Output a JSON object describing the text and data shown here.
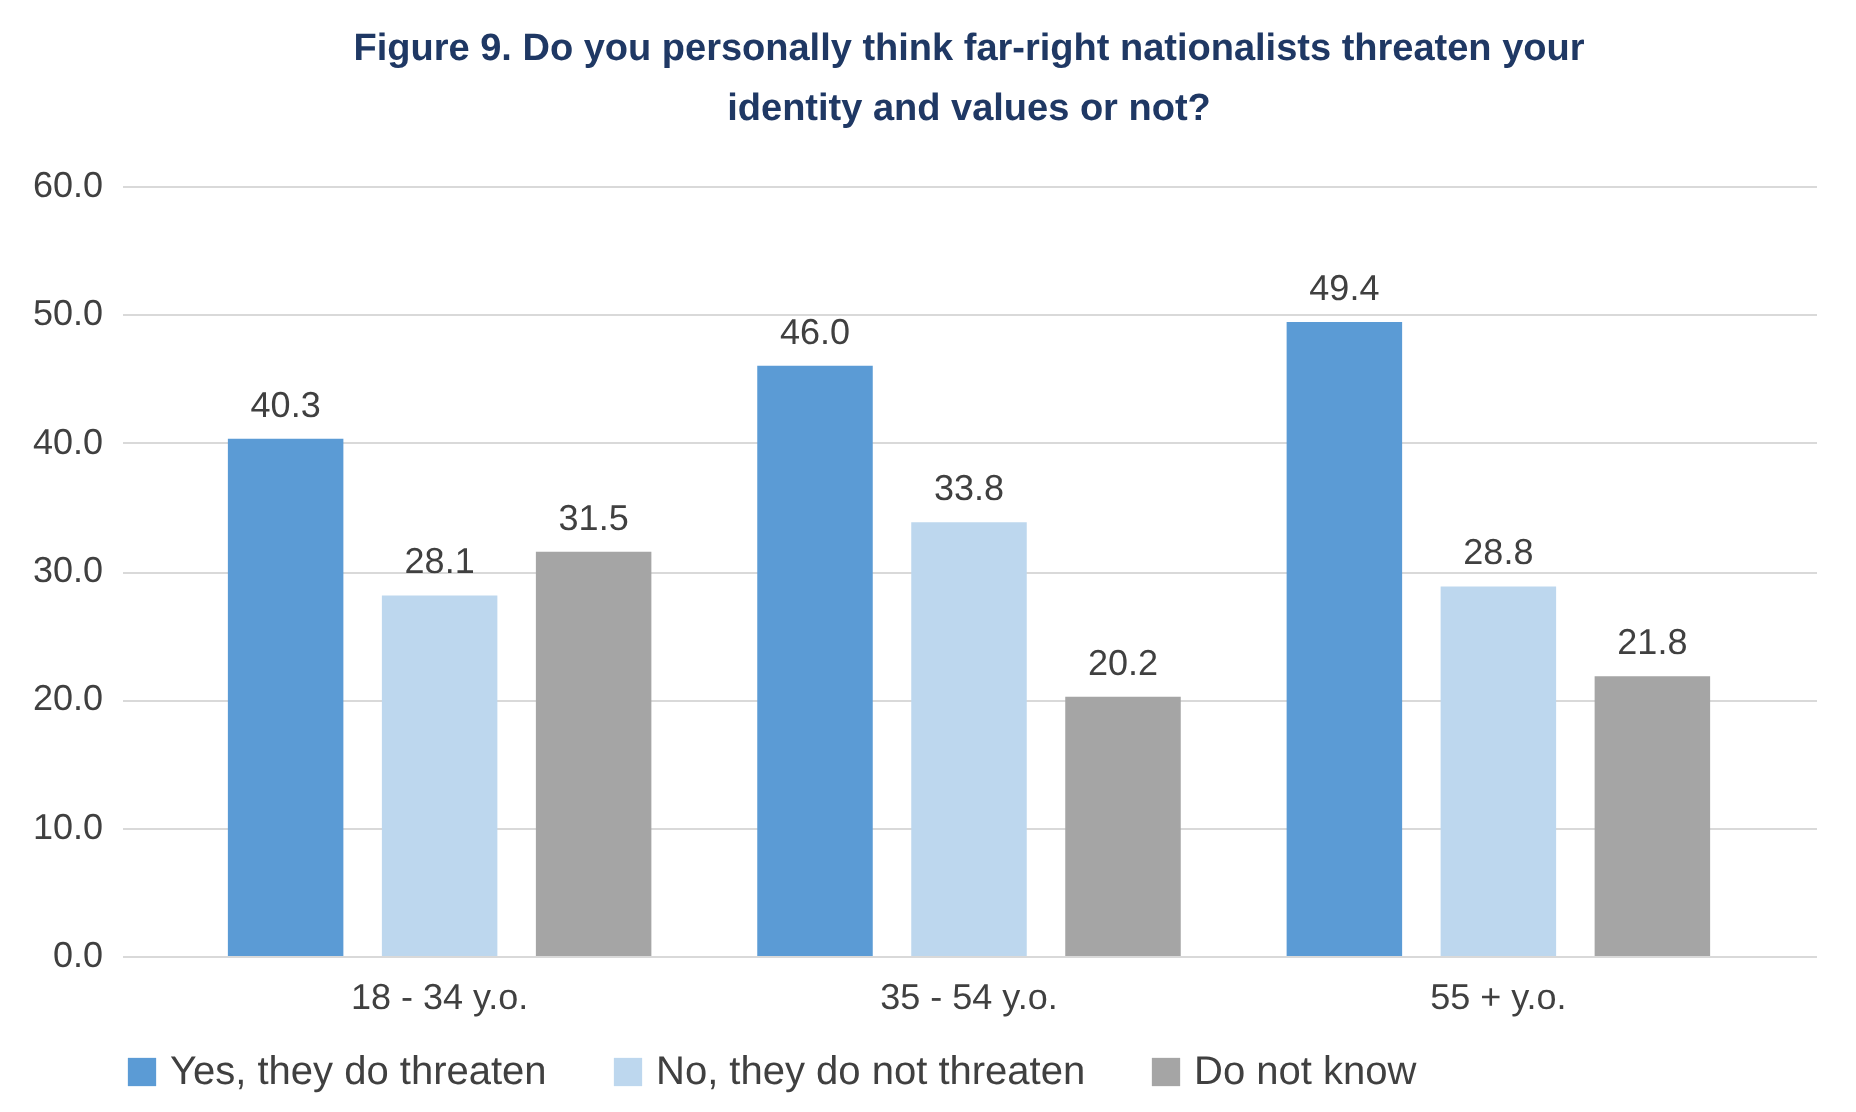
{
  "chart_data": {
    "type": "bar",
    "title": "Figure 9. Do you personally think far-right nationalists threaten your identity and values or not?",
    "categories": [
      "18 - 34 y.o.",
      "35 - 54 y.o.",
      "55 + y.o."
    ],
    "series": [
      {
        "name": "Yes, they do threaten",
        "color": "#5b9bd5",
        "values": [
          40.3,
          46.0,
          49.4
        ],
        "value_labels": [
          "40.3",
          "46.0",
          "49.4"
        ]
      },
      {
        "name": "No, they do not threaten",
        "color": "#bdd7ee",
        "values": [
          28.1,
          33.8,
          28.8
        ],
        "value_labels": [
          "28.1",
          "33.8",
          "28.8"
        ]
      },
      {
        "name": "Do not know",
        "color": "#a5a5a5",
        "values": [
          31.5,
          20.2,
          21.8
        ],
        "value_labels": [
          "31.5",
          "20.2",
          "21.8"
        ]
      }
    ],
    "ylim": [
      0,
      60
    ],
    "yticks": [
      {
        "value": 0,
        "label": "0.0"
      },
      {
        "value": 10,
        "label": "10.0"
      },
      {
        "value": 20,
        "label": "20.0"
      },
      {
        "value": 30,
        "label": "30.0"
      },
      {
        "value": 40,
        "label": "40.0"
      },
      {
        "value": 50,
        "label": "50.0"
      },
      {
        "value": 60,
        "label": "60.0"
      }
    ],
    "grid": "y",
    "legend": "bottom"
  }
}
